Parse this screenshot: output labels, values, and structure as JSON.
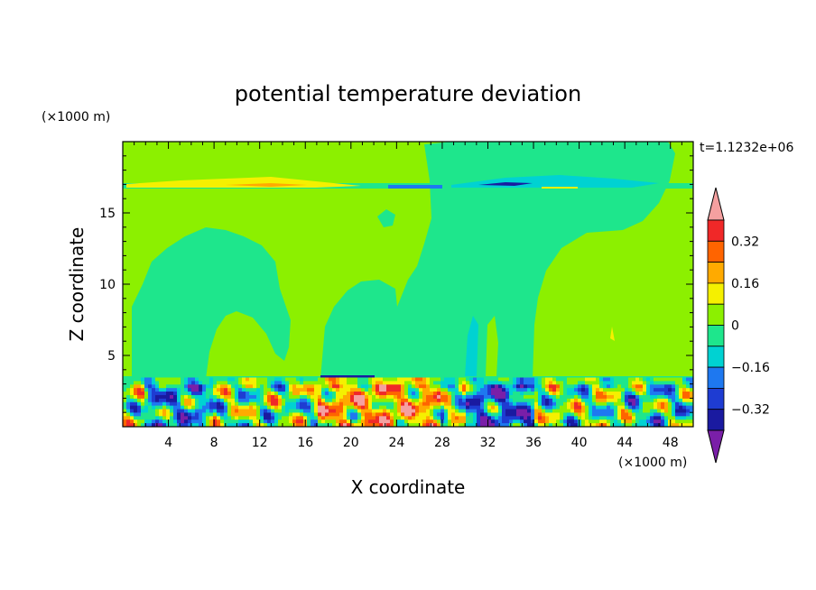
{
  "chart_data": {
    "type": "heatmap",
    "title": "potential temperature deviation",
    "xlabel": "X coordinate",
    "ylabel": "Z coordinate",
    "x_unit": "(×1000 m)",
    "y_unit": "(×1000 m)",
    "time_label": "t=1.1232e+06",
    "xlim": [
      0,
      50
    ],
    "ylim": [
      0,
      20
    ],
    "x_ticks": [
      "4",
      "8",
      "12",
      "16",
      "20",
      "24",
      "28",
      "32",
      "36",
      "40",
      "44",
      "48"
    ],
    "y_ticks": [
      "5",
      "10",
      "15"
    ],
    "colorbar": {
      "labels": [
        "0.32",
        "0.16",
        "0",
        "−0.16",
        "−0.32"
      ],
      "levels": [
        -0.4,
        -0.32,
        -0.24,
        -0.16,
        -0.08,
        0,
        0.08,
        0.16,
        0.24,
        0.32,
        0.4
      ],
      "colors": [
        "#7a1fa8",
        "#1a1aa0",
        "#1e3cd2",
        "#1e78f0",
        "#00d2d2",
        "#1ee68c",
        "#8cf000",
        "#f5f000",
        "#ffaa00",
        "#ff6400",
        "#f02828",
        "#f5a0a0"
      ],
      "extend": "both"
    },
    "regions_description_values": {
      "background_positive": 0.04,
      "plume_negative": -0.04,
      "upper_layer_band": [
        0.2,
        -0.2
      ],
      "boundary_layer_range": [
        -0.36,
        0.36
      ]
    }
  }
}
